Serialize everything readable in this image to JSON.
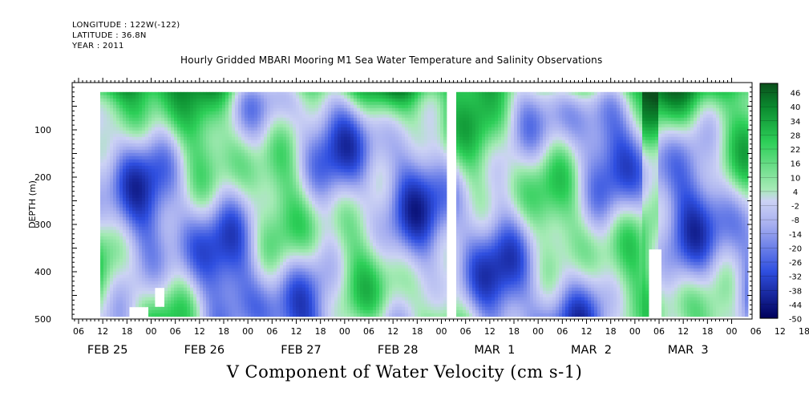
{
  "header": {
    "longitude": "LONGITUDE : 122W(-122)",
    "latitude": "LATITUDE : 36.8N",
    "year": "YEAR : 2011"
  },
  "chart_data": {
    "type": "heatmap",
    "title": "Hourly Gridded MBARI Mooring M1 Sea Water Temperature and Salinity Observations",
    "subtitle": "V Component of Water Velocity (cm s-1)",
    "xlabel": "",
    "ylabel": "DEPTH (m)",
    "x_range_hours": [
      0,
      168
    ],
    "ylim": [
      500,
      0
    ],
    "y_ticks": [
      100,
      200,
      300,
      400,
      500
    ],
    "hour_tick_labels": [
      "06",
      "12",
      "18",
      "00",
      "06",
      "12",
      "18",
      "00",
      "06",
      "12",
      "18",
      "00",
      "06",
      "12",
      "18",
      "00",
      "06",
      "12",
      "18",
      "00",
      "06",
      "12",
      "18",
      "00",
      "06",
      "12",
      "18",
      "00",
      "06",
      "12",
      "18",
      "00"
    ],
    "day_labels": [
      "FEB 25",
      "FEB 26",
      "FEB 27",
      "FEB 28",
      "MAR  1",
      "MAR  2",
      "MAR  3"
    ],
    "colorbar_labels": [
      "46",
      "40",
      "34",
      "28",
      "22",
      "16",
      "10",
      "4",
      "-2",
      "-8",
      "-14",
      "-20",
      "-26",
      "-32",
      "-38",
      "-44",
      "-50"
    ],
    "colorbar_range": [
      -50,
      50
    ],
    "data_depth_range": [
      20,
      490
    ],
    "colors": {
      "neg_strong": "#00005a",
      "neg": "#2f4fe0",
      "neg_light": "#a8b0f0",
      "near_zero": "#ccd2f4",
      "pos_light": "#a6eab6",
      "pos": "#2dcf58",
      "pos_strong": "#0b4f1c"
    }
  }
}
